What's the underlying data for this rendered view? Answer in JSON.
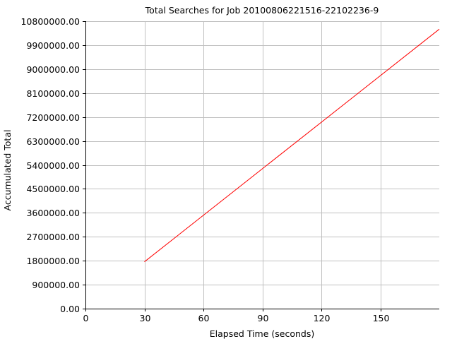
{
  "chart_data": {
    "type": "line",
    "title": "Total Searches for Job 20100806221516-22102236-9",
    "xlabel": "Elapsed Time (seconds)",
    "ylabel": "Accumulated Total",
    "xlim": [
      0,
      180
    ],
    "ylim": [
      0,
      10800000
    ],
    "x_ticks": [
      0,
      30,
      60,
      90,
      120,
      150
    ],
    "x_tick_labels": [
      "0",
      "30",
      "60",
      "90",
      "120",
      "150"
    ],
    "y_ticks": [
      0,
      900000,
      1800000,
      2700000,
      3600000,
      4500000,
      5400000,
      6300000,
      7200000,
      8100000,
      9000000,
      9900000,
      10800000
    ],
    "y_tick_labels": [
      "0.00",
      "900000.00",
      "1800000.00",
      "2700000.00",
      "3600000.00",
      "4500000.00",
      "5400000.00",
      "6300000.00",
      "7200000.00",
      "8100000.00",
      "9000000.00",
      "9900000.00",
      "10800000.00"
    ],
    "grid": true,
    "series": [
      {
        "color": "#ff0000",
        "x": [
          30,
          180
        ],
        "y": [
          1760000,
          10500000
        ]
      }
    ]
  }
}
